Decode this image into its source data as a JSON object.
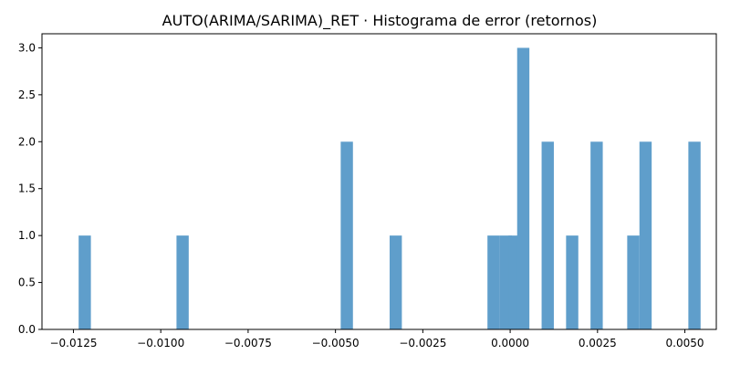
{
  "chart_data": {
    "type": "bar",
    "title": "AUTO(ARIMA/SARIMA)_RET · Histograma de error (retornos)",
    "xlabel": "",
    "ylabel": "",
    "xlim": [
      -0.0134,
      0.0059
    ],
    "ylim": [
      0,
      3.15
    ],
    "bin_width": 0.00035,
    "bars": [
      {
        "x": -0.01235,
        "value": 1
      },
      {
        "x": -0.00955,
        "value": 1
      },
      {
        "x": -0.00485,
        "value": 2
      },
      {
        "x": -0.00345,
        "value": 1
      },
      {
        "x": -0.00065,
        "value": 1
      },
      {
        "x": -0.0003,
        "value": 1
      },
      {
        "x": -5e-05,
        "value": 1
      },
      {
        "x": 0.0002,
        "value": 3
      },
      {
        "x": 0.0009,
        "value": 2
      },
      {
        "x": 0.0016,
        "value": 1
      },
      {
        "x": 0.0023,
        "value": 2
      },
      {
        "x": 0.00335,
        "value": 1
      },
      {
        "x": 0.0037,
        "value": 2
      },
      {
        "x": 0.0051,
        "value": 2
      }
    ],
    "x_ticks": [
      {
        "value": -0.0125,
        "label": "−0.0125"
      },
      {
        "value": -0.01,
        "label": "−0.0100"
      },
      {
        "value": -0.0075,
        "label": "−0.0075"
      },
      {
        "value": -0.005,
        "label": "−0.0050"
      },
      {
        "value": -0.0025,
        "label": "−0.0025"
      },
      {
        "value": 0.0,
        "label": "0.0000"
      },
      {
        "value": 0.0025,
        "label": "0.0025"
      },
      {
        "value": 0.005,
        "label": "0.0050"
      }
    ],
    "y_ticks": [
      {
        "value": 0.0,
        "label": "0.0"
      },
      {
        "value": 0.5,
        "label": "0.5"
      },
      {
        "value": 1.0,
        "label": "1.0"
      },
      {
        "value": 1.5,
        "label": "1.5"
      },
      {
        "value": 2.0,
        "label": "2.0"
      },
      {
        "value": 2.5,
        "label": "2.5"
      },
      {
        "value": 3.0,
        "label": "3.0"
      }
    ],
    "bar_color": "#5f9ecb",
    "grid": false,
    "legend": "none"
  }
}
